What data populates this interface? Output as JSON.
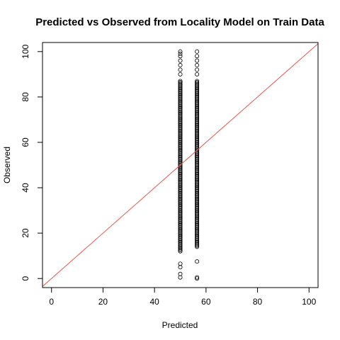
{
  "chart_data": {
    "type": "scatter",
    "title": "Predicted vs Observed from Locality Model on Train Data",
    "xlabel": "Predicted",
    "ylabel": "Observed",
    "xlim": [
      -3.5,
      103.5
    ],
    "ylim": [
      -4,
      104
    ],
    "xticks": [
      "0",
      "20",
      "40",
      "60",
      "80",
      "100"
    ],
    "yticks": [
      "0",
      "20",
      "40",
      "60",
      "80",
      "100"
    ],
    "grid": false,
    "legend": "none",
    "point_color": "#000000",
    "series": [
      {
        "x": 50,
        "y_min": 12,
        "y_max": 87,
        "outliers": [
          0.5,
          2,
          5,
          6.5,
          90,
          92,
          94,
          96,
          98,
          99,
          100
        ]
      },
      {
        "x": 56.5,
        "y_min": 14,
        "y_max": 87,
        "outliers": [
          0,
          0.5,
          7.5,
          90,
          92,
          94,
          96,
          98,
          100
        ]
      }
    ],
    "reference_line": {
      "slope": 1,
      "intercept": 0,
      "color": "#e8574f"
    }
  }
}
